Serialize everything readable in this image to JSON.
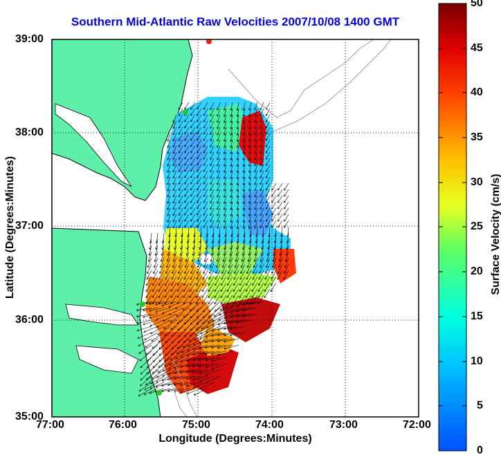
{
  "title": "Southern Mid-Atlantic Raw Velocities 2007/10/08 1400 GMT",
  "axes": {
    "x_label": "Longitude (Degrees:Minutes)",
    "y_label": "Latitude (Degrees:Minutes)",
    "x_ticks": [
      "77:00",
      "76:00",
      "75:00",
      "74:00",
      "73:00",
      "72:00"
    ],
    "y_ticks": [
      "39:00",
      "38:00",
      "37:00",
      "36:00",
      "35:00"
    ]
  },
  "colorbar": {
    "label": "Surface Velocity (cm/s)",
    "ticks": [
      "50",
      "45",
      "40",
      "35",
      "30",
      "25",
      "20",
      "15",
      "10",
      "5",
      "0"
    ],
    "range": [
      0,
      50
    ]
  },
  "colors": {
    "land": "#5ef0a8",
    "title": "#0000e0",
    "coastline": "#000000",
    "bathymetry": "#a0a0a0",
    "station_marker": "#22cc22",
    "station_marker_red": "#ee2222"
  }
}
